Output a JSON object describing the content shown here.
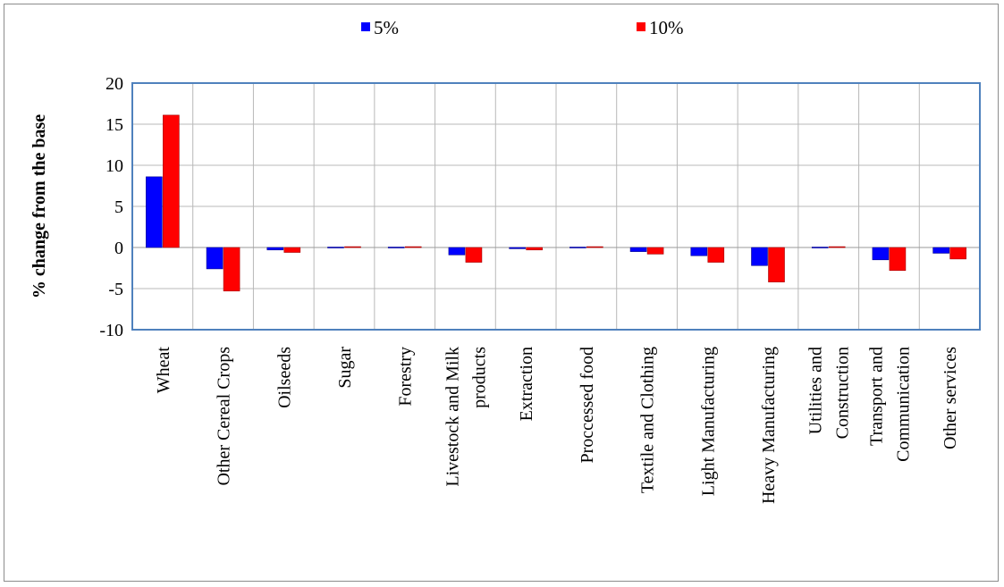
{
  "chart_data": {
    "type": "bar",
    "title": "",
    "xlabel": "",
    "ylabel": "% change from the base",
    "ylim": [
      -10,
      20
    ],
    "yticks": [
      20,
      15,
      10,
      5,
      0,
      -5,
      -10
    ],
    "grid": true,
    "legend_position": "top",
    "categories": [
      [
        "Wheat"
      ],
      [
        "Other Cereal Crops"
      ],
      [
        "Oilseeds"
      ],
      [
        "Sugar"
      ],
      [
        "Forestry"
      ],
      [
        "Livestock and Milk",
        "products"
      ],
      [
        "Extraction"
      ],
      [
        "Proccessed food"
      ],
      [
        "Textile and Clothing"
      ],
      [
        "Light Manufacturing"
      ],
      [
        "Heavy Manufacturing"
      ],
      [
        "Utilities and",
        "Construction"
      ],
      [
        "Transport and",
        "Communication"
      ],
      [
        "Other services"
      ]
    ],
    "series": [
      {
        "name": "5%",
        "color": "#0000ff",
        "values": [
          8.6,
          -2.6,
          -0.3,
          0.05,
          0.05,
          -0.9,
          -0.15,
          0.05,
          -0.5,
          -1.0,
          -2.2,
          0.05,
          -1.5,
          -0.7
        ]
      },
      {
        "name": "10%",
        "color": "#ff0000",
        "values": [
          16.1,
          -5.3,
          -0.6,
          0.1,
          0.1,
          -1.8,
          -0.3,
          0.1,
          -0.8,
          -1.8,
          -4.2,
          0.1,
          -2.8,
          -1.4
        ]
      }
    ]
  }
}
